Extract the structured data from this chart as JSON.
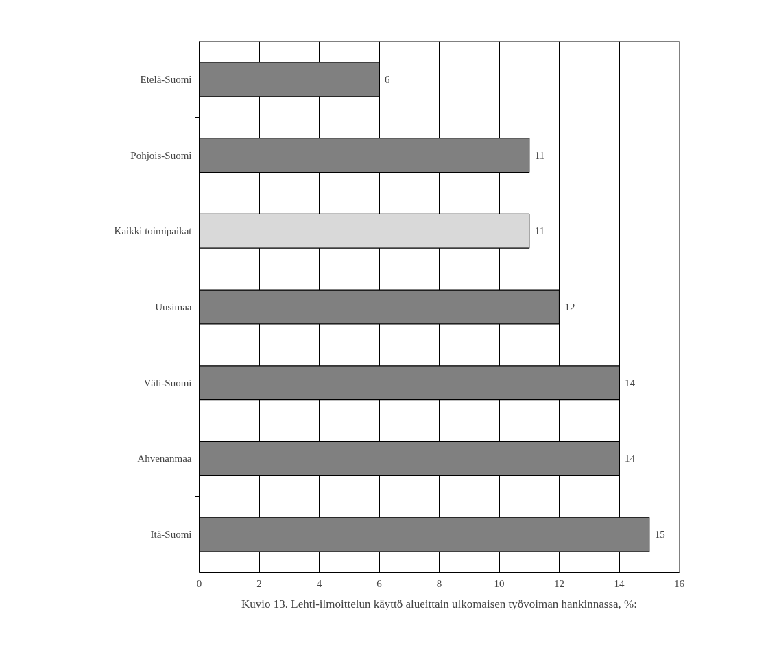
{
  "chart_data": {
    "type": "bar",
    "orientation": "horizontal",
    "categories": [
      "Etelä-Suomi",
      "Pohjois-Suomi",
      "Kaikki toimipaikat",
      "Uusimaa",
      "Väli-Suomi",
      "Ahvenanmaa",
      "Itä-Suomi"
    ],
    "values": [
      6,
      11,
      11,
      12,
      14,
      14,
      15
    ],
    "colors": [
      "#808080",
      "#808080",
      "#d9d9d9",
      "#808080",
      "#808080",
      "#808080",
      "#808080"
    ],
    "xlim": [
      0,
      16
    ],
    "xticks": [
      0,
      2,
      4,
      6,
      8,
      10,
      12,
      14,
      16
    ],
    "grid": "x",
    "data_labels": true,
    "annotations": [
      "Kuvio 13. Lehti-ilmoittelun käyttö alueittain ulkomaisen työvoiman hankinnassa, %:"
    ]
  }
}
